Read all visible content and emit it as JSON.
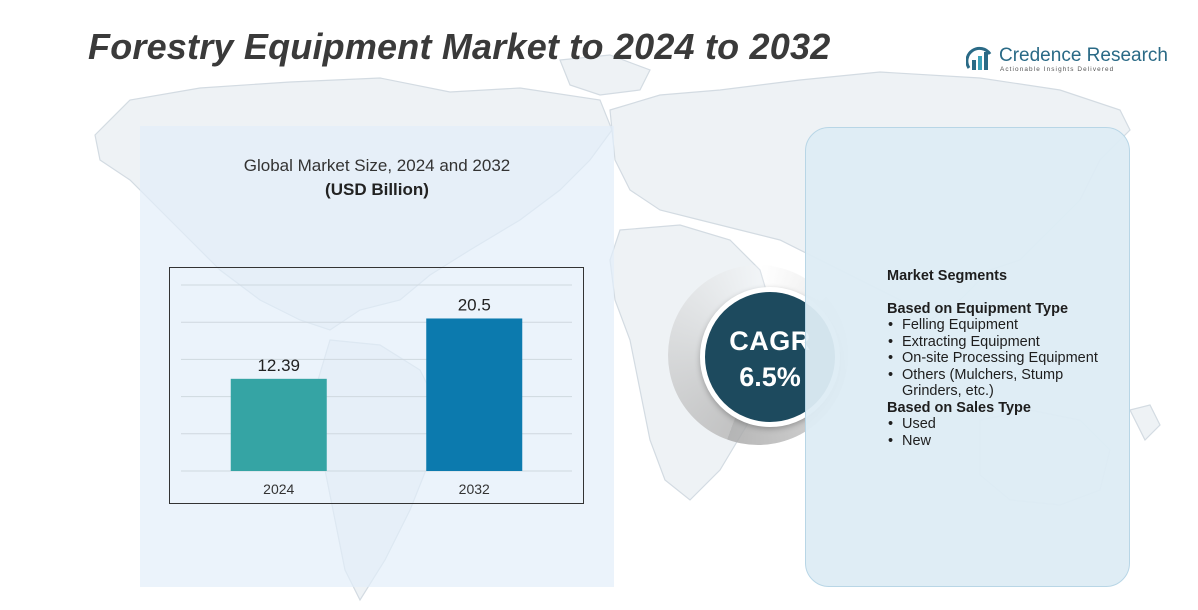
{
  "title": "Forestry Equipment Market to 2024 to 2032",
  "logo": {
    "icon": "bar-arc-logo-icon",
    "name": "Credence Research",
    "tagline": "Actionable Insights Delivered"
  },
  "chart_data": {
    "type": "bar",
    "title": "Global Market Size, 2024 and 2032",
    "subtitle": "(USD Billion)",
    "categories": [
      "2024",
      "2032"
    ],
    "values": [
      12.39,
      20.5
    ],
    "value_labels": [
      "12.39",
      "20.5"
    ],
    "bar_colors": [
      "#35a4a4",
      "#0c7aae"
    ],
    "ylim": [
      0,
      25
    ],
    "grid": true,
    "legend": "none"
  },
  "cagr": {
    "label": "CAGR",
    "value": "6.5%"
  },
  "segments": {
    "heading": "Market Segments",
    "groups": [
      {
        "title": "Based on Equipment Type",
        "items": [
          "Felling Equipment",
          "Extracting Equipment",
          "On-site Processing Equipment",
          "Others (Mulchers, Stump Grinders, etc.)"
        ]
      },
      {
        "title": "Based on Sales Type",
        "items": [
          "Used",
          "New"
        ]
      }
    ]
  },
  "colors": {
    "title": "#3a3a3a",
    "cagr_circle": "#1d4a5e",
    "logo": "#2a6a86",
    "panel": "#e2eef9"
  }
}
